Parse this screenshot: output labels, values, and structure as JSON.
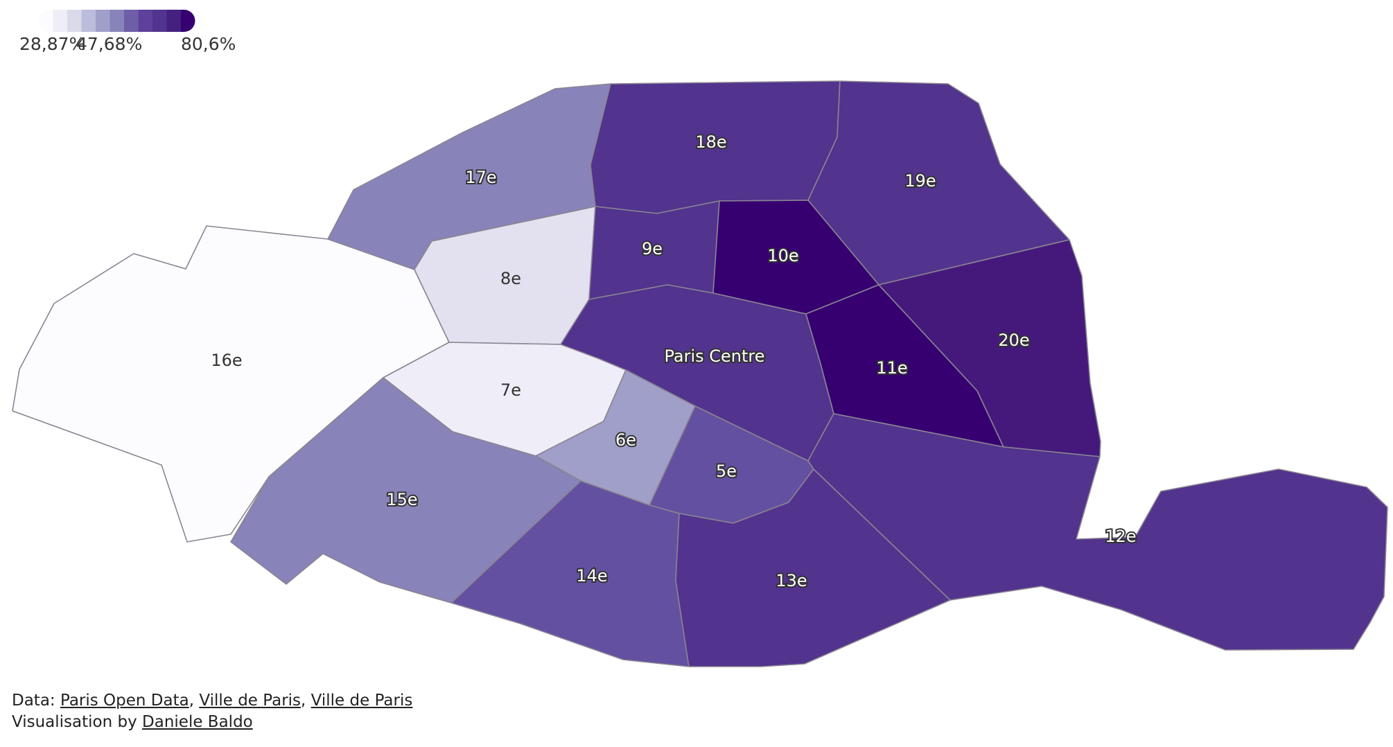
{
  "chart_data": {
    "type": "choropleth",
    "legend": {
      "min_label": "28,87%",
      "mid_label": "47,68%",
      "max_label": "80,6%",
      "steps": [
        "#fcfbfd",
        "#efedf5",
        "#dadaeb",
        "#bcbddc",
        "#a09fc9",
        "#8883b8",
        "#6e5ea8",
        "#5d419a",
        "#52338d",
        "#45217f",
        "#360071"
      ]
    },
    "regions": [
      {
        "name": "16e",
        "label": "16e",
        "color": "#fcfbfd",
        "light": true
      },
      {
        "name": "17e",
        "label": "17e",
        "color": "#8883b8",
        "light": false
      },
      {
        "name": "18e",
        "label": "18e",
        "color": "#52338d",
        "light": false
      },
      {
        "name": "19e",
        "label": "19e",
        "color": "#52338d",
        "light": false
      },
      {
        "name": "8e",
        "label": "8e",
        "color": "#e3e1ef",
        "light": true
      },
      {
        "name": "9e",
        "label": "9e",
        "color": "#52338d",
        "light": false
      },
      {
        "name": "10e",
        "label": "10e",
        "color": "#360071",
        "light": false
      },
      {
        "name": "Paris Centre",
        "label": "Paris Centre",
        "color": "#52338d",
        "light": false
      },
      {
        "name": "11e",
        "label": "11e",
        "color": "#360071",
        "light": false
      },
      {
        "name": "20e",
        "label": "20e",
        "color": "#45197c",
        "light": false
      },
      {
        "name": "7e",
        "label": "7e",
        "color": "#efedf7",
        "light": true
      },
      {
        "name": "6e",
        "label": "6e",
        "color": "#a09fc9",
        "light": false
      },
      {
        "name": "5e",
        "label": "5e",
        "color": "#6450a0",
        "light": false
      },
      {
        "name": "15e",
        "label": "15e",
        "color": "#8883b8",
        "light": false
      },
      {
        "name": "14e",
        "label": "14e",
        "color": "#6450a0",
        "light": false
      },
      {
        "name": "13e",
        "label": "13e",
        "color": "#52338d",
        "light": false
      },
      {
        "name": "12e",
        "label": "12e",
        "color": "#52338d",
        "light": false
      }
    ]
  },
  "footer": {
    "data_prefix": "Data: ",
    "sources": [
      "Paris Open Data",
      "Ville de Paris",
      "Ville de Paris"
    ],
    "vis_prefix": "Visualisation by ",
    "author": "Daniele Baldo"
  }
}
